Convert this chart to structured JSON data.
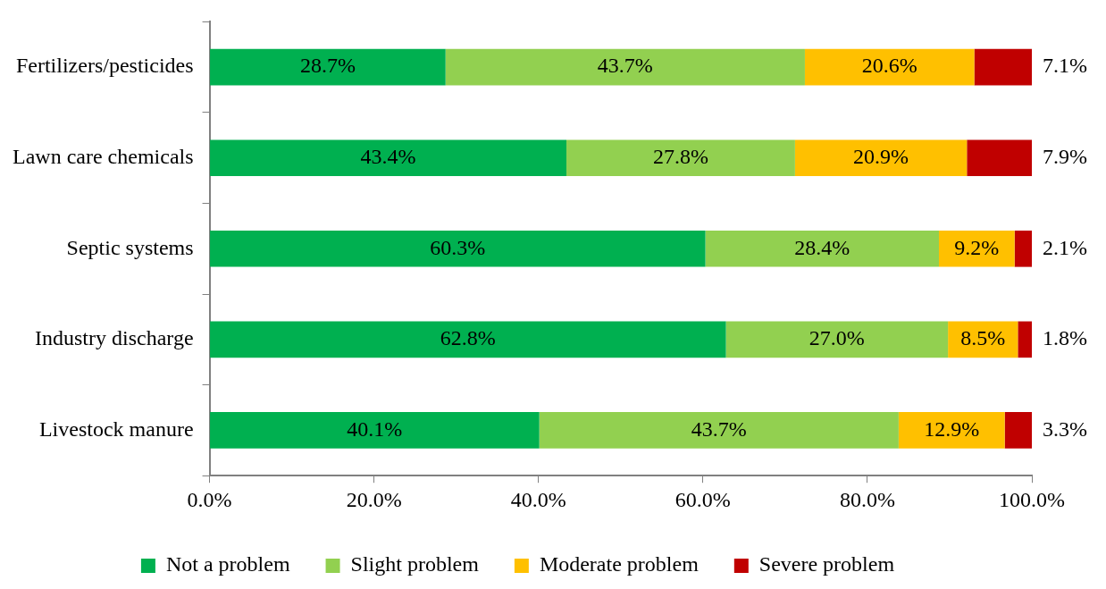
{
  "chart_data": {
    "type": "bar",
    "orientation": "horizontal",
    "stacked": true,
    "categories": [
      "Fertilizers/pesticides",
      "Lawn care chemicals",
      "Septic systems",
      "Industry discharge",
      "Livestock manure"
    ],
    "series": [
      {
        "name": "Not a problem",
        "color": "#00b050",
        "values": [
          28.7,
          43.4,
          60.3,
          62.8,
          40.1
        ],
        "value_labels": [
          "28.7%",
          "43.4%",
          "60.3%",
          "62.8%",
          "40.1%"
        ]
      },
      {
        "name": "Slight problem",
        "color": "#92d050",
        "values": [
          43.7,
          27.8,
          28.4,
          27.0,
          43.7
        ],
        "value_labels": [
          "43.7%",
          "27.8%",
          "28.4%",
          "27.0%",
          "43.7%"
        ]
      },
      {
        "name": "Moderate problem",
        "color": "#ffc000",
        "values": [
          20.6,
          20.9,
          9.2,
          8.5,
          12.9
        ],
        "value_labels": [
          "20.6%",
          "20.9%",
          "9.2%",
          "8.5%",
          "12.9%"
        ]
      },
      {
        "name": "Severe problem",
        "color": "#c00000",
        "values": [
          7.1,
          7.9,
          2.1,
          1.8,
          3.3
        ],
        "value_labels": [
          "7.1%",
          "7.9%",
          "2.1%",
          "1.8%",
          "3.3%"
        ]
      }
    ],
    "xlim": [
      0,
      100
    ],
    "xticks": [
      {
        "value": 0,
        "label": "0.0%"
      },
      {
        "value": 20,
        "label": "20.0%"
      },
      {
        "value": 40,
        "label": "40.0%"
      },
      {
        "value": 60,
        "label": "60.0%"
      },
      {
        "value": 80,
        "label": "80.0%"
      },
      {
        "value": 100,
        "label": "100.0%"
      }
    ],
    "grid": false,
    "legend": "bottom"
  }
}
